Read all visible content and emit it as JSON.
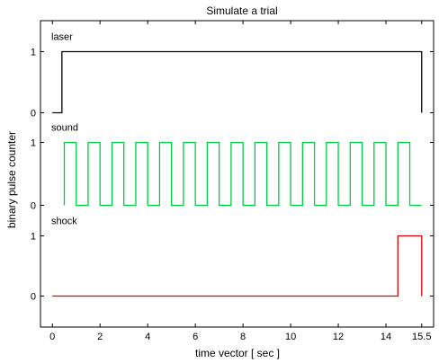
{
  "chart_data": {
    "type": "line",
    "title": "Simulate a trial",
    "xlabel": "time vector [ sec ]",
    "ylabel": "binary pulse counter",
    "xlim": [
      -0.5,
      16
    ],
    "x_ticks": [
      0,
      2,
      4,
      6,
      8,
      10,
      12,
      14,
      15.5
    ],
    "x_tick_labels": [
      "0",
      "2",
      "4",
      "6",
      "8",
      "10",
      "12",
      "14",
      "15.5"
    ],
    "y_tick_labels": [
      "0",
      "1"
    ],
    "grid": false,
    "series": [
      {
        "name": "laser",
        "color": "#000000",
        "x": [
          0,
          0.4,
          0.4,
          15.5,
          15.5
        ],
        "y": [
          0,
          0,
          1,
          1,
          0
        ]
      },
      {
        "name": "sound",
        "color": "#00cc44",
        "x": [
          0.5,
          0.5,
          1.0,
          1.0,
          1.5,
          1.5,
          2.0,
          2.0,
          2.5,
          2.5,
          3.0,
          3.0,
          3.5,
          3.5,
          4.0,
          4.0,
          4.5,
          4.5,
          5.0,
          5.0,
          5.5,
          5.5,
          6.0,
          6.0,
          6.5,
          6.5,
          7.0,
          7.0,
          7.5,
          7.5,
          8.0,
          8.0,
          8.5,
          8.5,
          9.0,
          9.0,
          9.5,
          9.5,
          10.0,
          10.0,
          10.5,
          10.5,
          11.0,
          11.0,
          11.5,
          11.5,
          12.0,
          12.0,
          12.5,
          12.5,
          13.0,
          13.0,
          13.5,
          13.5,
          14.0,
          14.0,
          14.5,
          14.5,
          15.0,
          15.0,
          15.5
        ],
        "y": [
          0,
          1,
          1,
          0,
          0,
          1,
          1,
          0,
          0,
          1,
          1,
          0,
          0,
          1,
          1,
          0,
          0,
          1,
          1,
          0,
          0,
          1,
          1,
          0,
          0,
          1,
          1,
          0,
          0,
          1,
          1,
          0,
          0,
          1,
          1,
          0,
          0,
          1,
          1,
          0,
          0,
          1,
          1,
          0,
          0,
          1,
          1,
          0,
          0,
          1,
          1,
          0,
          0,
          1,
          1,
          0,
          0,
          1,
          1,
          0,
          0
        ]
      },
      {
        "name": "shock",
        "color": "#dd0000",
        "x": [
          0,
          14.5,
          14.5,
          15.5,
          15.5
        ],
        "y": [
          0,
          0,
          1,
          1,
          0
        ]
      }
    ]
  }
}
